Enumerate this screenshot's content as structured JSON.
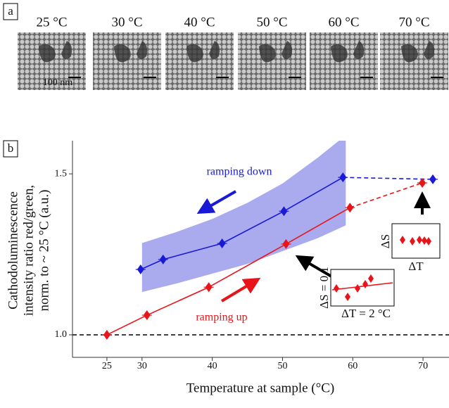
{
  "panel_a": {
    "label": "a",
    "scale_bar": "100 nm",
    "images": [
      {
        "label": "25 °C"
      },
      {
        "label": "30 °C"
      },
      {
        "label": "40 °C"
      },
      {
        "label": "50 °C"
      },
      {
        "label": "60 °C"
      },
      {
        "label": "70 °C"
      }
    ]
  },
  "chart_data": {
    "type": "line",
    "panel_label": "b",
    "xlabel": "Temperature at sample (°C)",
    "ylabel": [
      "Cathodoluminescence",
      "intensity ratio red/green,",
      "norm. to ~ 25 °C (a.u.)"
    ],
    "xlim": [
      20.1,
      73.7
    ],
    "ylim": [
      0.93,
      1.603
    ],
    "xticks": [
      25,
      30,
      40,
      50,
      60,
      70
    ],
    "yticks": [
      {
        "value": 1.0,
        "label": "1.0"
      },
      {
        "value": 1.5,
        "label": "1.5"
      }
    ],
    "reference_line": 1.0,
    "series": [
      {
        "name": "ramping down",
        "color": "#1a1ad6",
        "x": [
          29.8,
          33,
          41.4,
          50.2,
          58.6,
          71.4
        ],
        "values": [
          1.203,
          1.234,
          1.284,
          1.384,
          1.489,
          1.483
        ],
        "dashed_from": 4
      },
      {
        "name": "ramping up",
        "color": "#e8141a",
        "x": [
          25,
          30.7,
          39.5,
          50.5,
          59.6,
          69.9
        ],
        "values": [
          1.0,
          1.061,
          1.148,
          1.282,
          1.395,
          1.472
        ],
        "dashed_from": 4
      }
    ],
    "band": {
      "color": "#a9abee",
      "x": [
        30,
        35,
        40,
        45,
        50,
        55,
        59
      ],
      "lower": [
        1.133,
        1.16,
        1.19,
        1.22,
        1.26,
        1.3,
        1.34
      ],
      "upper": [
        1.285,
        1.32,
        1.36,
        1.41,
        1.47,
        1.55,
        1.62
      ]
    },
    "insets": [
      {
        "dy": "ΔS = 0.1",
        "dx": "ΔT = 2 °C"
      },
      {
        "dy": "ΔS",
        "dx": "ΔT"
      }
    ]
  }
}
